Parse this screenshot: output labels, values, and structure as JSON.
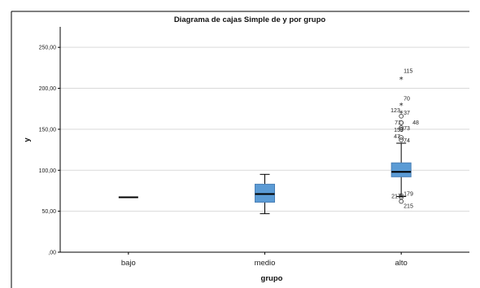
{
  "chart_data": {
    "type": "boxplot",
    "title": "Diagrama de cajas Simple de y por grupo",
    "xlabel": "grupo",
    "ylabel": "y",
    "ylim": [
      0,
      275
    ],
    "yticks": [
      {
        "value": 0,
        "label": ",00"
      },
      {
        "value": 50,
        "label": "50,00"
      },
      {
        "value": 100,
        "label": "100,00"
      },
      {
        "value": 150,
        "label": "150,00"
      },
      {
        "value": 200,
        "label": "200,00"
      },
      {
        "value": 250,
        "label": "250,00"
      }
    ],
    "grid": "horizontal",
    "colors": {
      "box": "#5b9bd5",
      "box_edge": "#4a7fb5",
      "median": "#000000"
    },
    "groups": [
      {
        "category": "bajo",
        "min": 67,
        "q1": 67,
        "median": 67,
        "q3": 67,
        "max": 67,
        "outliers": []
      },
      {
        "category": "medio",
        "min": 47,
        "q1": 61,
        "median": 71,
        "q3": 83,
        "max": 95,
        "outliers": []
      },
      {
        "category": "alto",
        "min": 68,
        "q1": 92,
        "median": 98,
        "q3": 109,
        "max": 133,
        "outliers": [
          {
            "y": 211,
            "marker": "extreme",
            "label": "115"
          },
          {
            "y": 179,
            "marker": "extreme",
            "label": "70"
          },
          {
            "y": 170,
            "marker": "extreme",
            "label": "123"
          },
          {
            "y": 166,
            "marker": "circle",
            "label": "37"
          },
          {
            "y": 158,
            "marker": "circle",
            "label": "71"
          },
          {
            "y": 158,
            "marker": "circle",
            "label": "48"
          },
          {
            "y": 152,
            "marker": "circle",
            "label": "73"
          },
          {
            "y": 150,
            "marker": "circle",
            "label": "159"
          },
          {
            "y": 140,
            "marker": "circle",
            "label": "47"
          },
          {
            "y": 137,
            "marker": "circle",
            "label": "74"
          },
          {
            "y": 69,
            "marker": "circle",
            "label": "179"
          },
          {
            "y": 67,
            "marker": "circle",
            "label": "217"
          },
          {
            "y": 62,
            "marker": "circle",
            "label": "215"
          }
        ]
      }
    ]
  }
}
